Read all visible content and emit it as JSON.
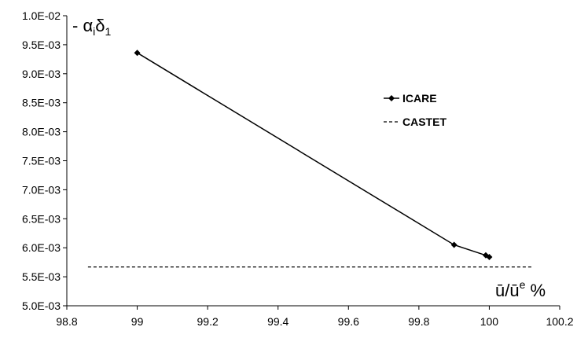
{
  "chart_data": {
    "type": "line",
    "title": "",
    "xlabel": "ū/ū",
    "xlabel_sup": "e",
    "xlabel_suffix": " %",
    "ylabel_prefix": "- α",
    "ylabel_sub1": "i",
    "ylabel_mid": "δ",
    "ylabel_sub2": "1",
    "xlim": [
      98.8,
      100.2
    ],
    "ylim": [
      0.005,
      0.01
    ],
    "x_ticks": [
      "98.8",
      "99",
      "99.2",
      "99.4",
      "99.6",
      "99.8",
      "100",
      "100.2"
    ],
    "x_tick_values": [
      98.8,
      99.0,
      99.2,
      99.4,
      99.6,
      99.8,
      100.0,
      100.2
    ],
    "y_ticks": [
      "5.0E-03",
      "5.5E-03",
      "6.0E-03",
      "6.5E-03",
      "7.0E-03",
      "7.5E-03",
      "8.0E-03",
      "8.5E-03",
      "9.0E-03",
      "9.5E-03",
      "1.0E-02"
    ],
    "y_tick_values": [
      0.005,
      0.0055,
      0.006,
      0.0065,
      0.007,
      0.0075,
      0.008,
      0.0085,
      0.009,
      0.0095,
      0.01
    ],
    "grid": false,
    "legend_position": "top-right",
    "series": [
      {
        "name": "ICARE",
        "style": "solid-diamond",
        "color": "#000000",
        "x": [
          99.0,
          99.9,
          99.99,
          100.0
        ],
        "y": [
          0.00936,
          0.00605,
          0.00587,
          0.00584
        ]
      },
      {
        "name": "CASTET",
        "style": "dashed",
        "color": "#000000",
        "x": [
          98.86,
          100.12
        ],
        "y": [
          0.00567,
          0.00567
        ]
      }
    ]
  }
}
